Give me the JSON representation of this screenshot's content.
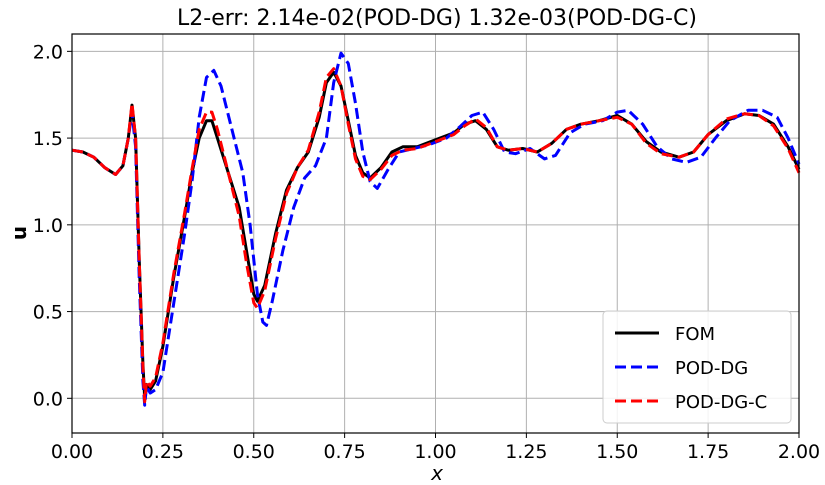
{
  "chart_data": {
    "type": "line",
    "title": "L2-err: 2.14e-02(POD-DG)  1.32e-03(POD-DG-C)",
    "xlabel": "x",
    "ylabel": "u",
    "xlim": [
      0.0,
      2.0
    ],
    "ylim": [
      -0.2,
      2.1
    ],
    "x_ticks": [
      "0.00",
      "0.25",
      "0.50",
      "0.75",
      "1.00",
      "1.25",
      "1.50",
      "1.75",
      "2.00"
    ],
    "y_ticks": [
      "0.0",
      "0.5",
      "1.0",
      "1.5",
      "2.0"
    ],
    "grid": true,
    "legend_position": "bottom-right",
    "series": [
      {
        "name": "FOM",
        "color": "#000000",
        "dashed": false,
        "points": [
          [
            0.0,
            1.43
          ],
          [
            0.03,
            1.42
          ],
          [
            0.06,
            1.39
          ],
          [
            0.09,
            1.33
          ],
          [
            0.12,
            1.29
          ],
          [
            0.14,
            1.34
          ],
          [
            0.155,
            1.5
          ],
          [
            0.165,
            1.69
          ],
          [
            0.175,
            1.5
          ],
          [
            0.185,
            0.8
          ],
          [
            0.195,
            0.2
          ],
          [
            0.2,
            0.0
          ],
          [
            0.205,
            0.08
          ],
          [
            0.215,
            0.05
          ],
          [
            0.23,
            0.1
          ],
          [
            0.25,
            0.3
          ],
          [
            0.28,
            0.7
          ],
          [
            0.31,
            1.05
          ],
          [
            0.33,
            1.3
          ],
          [
            0.35,
            1.5
          ],
          [
            0.37,
            1.6
          ],
          [
            0.385,
            1.6
          ],
          [
            0.4,
            1.5
          ],
          [
            0.43,
            1.3
          ],
          [
            0.46,
            1.1
          ],
          [
            0.48,
            0.85
          ],
          [
            0.5,
            0.6
          ],
          [
            0.51,
            0.56
          ],
          [
            0.53,
            0.65
          ],
          [
            0.56,
            0.95
          ],
          [
            0.59,
            1.2
          ],
          [
            0.62,
            1.33
          ],
          [
            0.65,
            1.42
          ],
          [
            0.68,
            1.62
          ],
          [
            0.7,
            1.82
          ],
          [
            0.72,
            1.88
          ],
          [
            0.74,
            1.8
          ],
          [
            0.76,
            1.6
          ],
          [
            0.78,
            1.4
          ],
          [
            0.8,
            1.3
          ],
          [
            0.82,
            1.27
          ],
          [
            0.85,
            1.33
          ],
          [
            0.88,
            1.42
          ],
          [
            0.91,
            1.45
          ],
          [
            0.95,
            1.45
          ],
          [
            1.0,
            1.49
          ],
          [
            1.05,
            1.53
          ],
          [
            1.08,
            1.58
          ],
          [
            1.11,
            1.6
          ],
          [
            1.14,
            1.55
          ],
          [
            1.17,
            1.45
          ],
          [
            1.2,
            1.43
          ],
          [
            1.24,
            1.44
          ],
          [
            1.28,
            1.42
          ],
          [
            1.32,
            1.47
          ],
          [
            1.36,
            1.55
          ],
          [
            1.4,
            1.58
          ],
          [
            1.45,
            1.6
          ],
          [
            1.5,
            1.63
          ],
          [
            1.54,
            1.58
          ],
          [
            1.58,
            1.48
          ],
          [
            1.62,
            1.42
          ],
          [
            1.67,
            1.39
          ],
          [
            1.71,
            1.42
          ],
          [
            1.75,
            1.52
          ],
          [
            1.8,
            1.6
          ],
          [
            1.85,
            1.64
          ],
          [
            1.89,
            1.63
          ],
          [
            1.93,
            1.58
          ],
          [
            1.97,
            1.45
          ],
          [
            2.0,
            1.32
          ]
        ]
      },
      {
        "name": "POD-DG",
        "color": "#0000ff",
        "dashed": true,
        "points": [
          [
            0.0,
            1.43
          ],
          [
            0.03,
            1.42
          ],
          [
            0.06,
            1.39
          ],
          [
            0.09,
            1.33
          ],
          [
            0.12,
            1.29
          ],
          [
            0.14,
            1.34
          ],
          [
            0.155,
            1.5
          ],
          [
            0.165,
            1.65
          ],
          [
            0.175,
            1.45
          ],
          [
            0.185,
            0.7
          ],
          [
            0.195,
            0.1
          ],
          [
            0.2,
            -0.04
          ],
          [
            0.205,
            0.07
          ],
          [
            0.215,
            0.03
          ],
          [
            0.23,
            0.05
          ],
          [
            0.25,
            0.15
          ],
          [
            0.28,
            0.55
          ],
          [
            0.31,
            0.95
          ],
          [
            0.33,
            1.25
          ],
          [
            0.35,
            1.62
          ],
          [
            0.37,
            1.85
          ],
          [
            0.39,
            1.89
          ],
          [
            0.41,
            1.8
          ],
          [
            0.44,
            1.55
          ],
          [
            0.47,
            1.3
          ],
          [
            0.49,
            1.0
          ],
          [
            0.51,
            0.6
          ],
          [
            0.525,
            0.44
          ],
          [
            0.535,
            0.42
          ],
          [
            0.55,
            0.55
          ],
          [
            0.58,
            0.85
          ],
          [
            0.61,
            1.1
          ],
          [
            0.64,
            1.27
          ],
          [
            0.67,
            1.34
          ],
          [
            0.7,
            1.5
          ],
          [
            0.72,
            1.82
          ],
          [
            0.74,
            1.99
          ],
          [
            0.76,
            1.93
          ],
          [
            0.78,
            1.7
          ],
          [
            0.8,
            1.42
          ],
          [
            0.82,
            1.25
          ],
          [
            0.84,
            1.21
          ],
          [
            0.87,
            1.32
          ],
          [
            0.9,
            1.42
          ],
          [
            0.94,
            1.44
          ],
          [
            0.98,
            1.46
          ],
          [
            1.03,
            1.5
          ],
          [
            1.07,
            1.57
          ],
          [
            1.1,
            1.63
          ],
          [
            1.13,
            1.65
          ],
          [
            1.16,
            1.55
          ],
          [
            1.19,
            1.42
          ],
          [
            1.22,
            1.41
          ],
          [
            1.26,
            1.44
          ],
          [
            1.3,
            1.38
          ],
          [
            1.33,
            1.4
          ],
          [
            1.37,
            1.53
          ],
          [
            1.41,
            1.58
          ],
          [
            1.46,
            1.6
          ],
          [
            1.5,
            1.65
          ],
          [
            1.53,
            1.66
          ],
          [
            1.57,
            1.58
          ],
          [
            1.61,
            1.45
          ],
          [
            1.65,
            1.38
          ],
          [
            1.69,
            1.36
          ],
          [
            1.73,
            1.39
          ],
          [
            1.77,
            1.5
          ],
          [
            1.81,
            1.6
          ],
          [
            1.86,
            1.66
          ],
          [
            1.9,
            1.66
          ],
          [
            1.94,
            1.62
          ],
          [
            1.97,
            1.5
          ],
          [
            2.0,
            1.35
          ]
        ]
      },
      {
        "name": "POD-DG-C",
        "color": "#ff0000",
        "dashed": true,
        "points": [
          [
            0.0,
            1.43
          ],
          [
            0.03,
            1.42
          ],
          [
            0.06,
            1.39
          ],
          [
            0.09,
            1.33
          ],
          [
            0.12,
            1.29
          ],
          [
            0.14,
            1.34
          ],
          [
            0.155,
            1.5
          ],
          [
            0.165,
            1.7
          ],
          [
            0.175,
            1.5
          ],
          [
            0.185,
            0.8
          ],
          [
            0.195,
            0.18
          ],
          [
            0.2,
            -0.02
          ],
          [
            0.205,
            0.1
          ],
          [
            0.215,
            0.07
          ],
          [
            0.23,
            0.12
          ],
          [
            0.25,
            0.32
          ],
          [
            0.28,
            0.72
          ],
          [
            0.31,
            1.07
          ],
          [
            0.33,
            1.32
          ],
          [
            0.35,
            1.55
          ],
          [
            0.37,
            1.65
          ],
          [
            0.385,
            1.65
          ],
          [
            0.4,
            1.55
          ],
          [
            0.43,
            1.3
          ],
          [
            0.46,
            1.05
          ],
          [
            0.48,
            0.78
          ],
          [
            0.5,
            0.55
          ],
          [
            0.51,
            0.52
          ],
          [
            0.53,
            0.62
          ],
          [
            0.56,
            0.92
          ],
          [
            0.59,
            1.18
          ],
          [
            0.62,
            1.33
          ],
          [
            0.65,
            1.43
          ],
          [
            0.68,
            1.65
          ],
          [
            0.7,
            1.85
          ],
          [
            0.72,
            1.9
          ],
          [
            0.74,
            1.8
          ],
          [
            0.76,
            1.58
          ],
          [
            0.78,
            1.38
          ],
          [
            0.8,
            1.28
          ],
          [
            0.82,
            1.26
          ],
          [
            0.85,
            1.32
          ],
          [
            0.88,
            1.4
          ],
          [
            0.91,
            1.43
          ],
          [
            0.95,
            1.44
          ],
          [
            1.0,
            1.48
          ],
          [
            1.05,
            1.52
          ],
          [
            1.08,
            1.57
          ],
          [
            1.11,
            1.61
          ],
          [
            1.14,
            1.56
          ],
          [
            1.17,
            1.45
          ],
          [
            1.2,
            1.43
          ],
          [
            1.24,
            1.44
          ],
          [
            1.28,
            1.42
          ],
          [
            1.32,
            1.47
          ],
          [
            1.36,
            1.55
          ],
          [
            1.4,
            1.58
          ],
          [
            1.45,
            1.6
          ],
          [
            1.5,
            1.62
          ],
          [
            1.54,
            1.58
          ],
          [
            1.58,
            1.47
          ],
          [
            1.62,
            1.41
          ],
          [
            1.67,
            1.39
          ],
          [
            1.71,
            1.42
          ],
          [
            1.75,
            1.52
          ],
          [
            1.8,
            1.61
          ],
          [
            1.85,
            1.64
          ],
          [
            1.89,
            1.63
          ],
          [
            1.93,
            1.57
          ],
          [
            1.97,
            1.44
          ],
          [
            2.0,
            1.3
          ]
        ]
      }
    ]
  }
}
